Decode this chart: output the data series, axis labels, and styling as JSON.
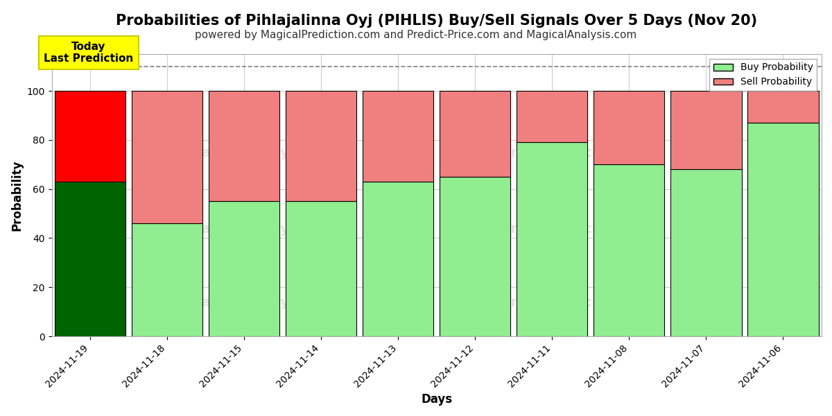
{
  "title": "Probabilities of Pihlajalinna Oyj (PIHLIS) Buy/Sell Signals Over 5 Days (Nov 20)",
  "subtitle": "powered by MagicalPrediction.com and Predict-Price.com and MagicalAnalysis.com",
  "xlabel": "Days",
  "ylabel": "Probability",
  "categories": [
    "2024-11-19",
    "2024-11-18",
    "2024-11-15",
    "2024-11-14",
    "2024-11-13",
    "2024-11-12",
    "2024-11-11",
    "2024-11-08",
    "2024-11-07",
    "2024-11-06"
  ],
  "buy_values": [
    63,
    46,
    55,
    55,
    63,
    65,
    79,
    70,
    68,
    87
  ],
  "sell_values": [
    37,
    54,
    45,
    45,
    37,
    35,
    21,
    30,
    32,
    13
  ],
  "today_index": 0,
  "today_buy_color": "#006400",
  "today_sell_color": "#FF0000",
  "normal_buy_color": "#90EE90",
  "normal_sell_color": "#F08080",
  "bar_edge_color": "#000000",
  "ylim": [
    0,
    115
  ],
  "yticks": [
    0,
    20,
    40,
    60,
    80,
    100
  ],
  "dashed_line_y": 110,
  "annotation_text": "Today\nLast Prediction",
  "annotation_bg_color": "#FFFF00",
  "legend_buy_label": "Buy Probability",
  "legend_sell_label": "Sell Probability",
  "bg_color": "#FFFFFF",
  "grid_color": "#CCCCCC",
  "title_fontsize": 15,
  "subtitle_fontsize": 11,
  "label_fontsize": 12,
  "tick_fontsize": 10,
  "bar_width": 0.92
}
